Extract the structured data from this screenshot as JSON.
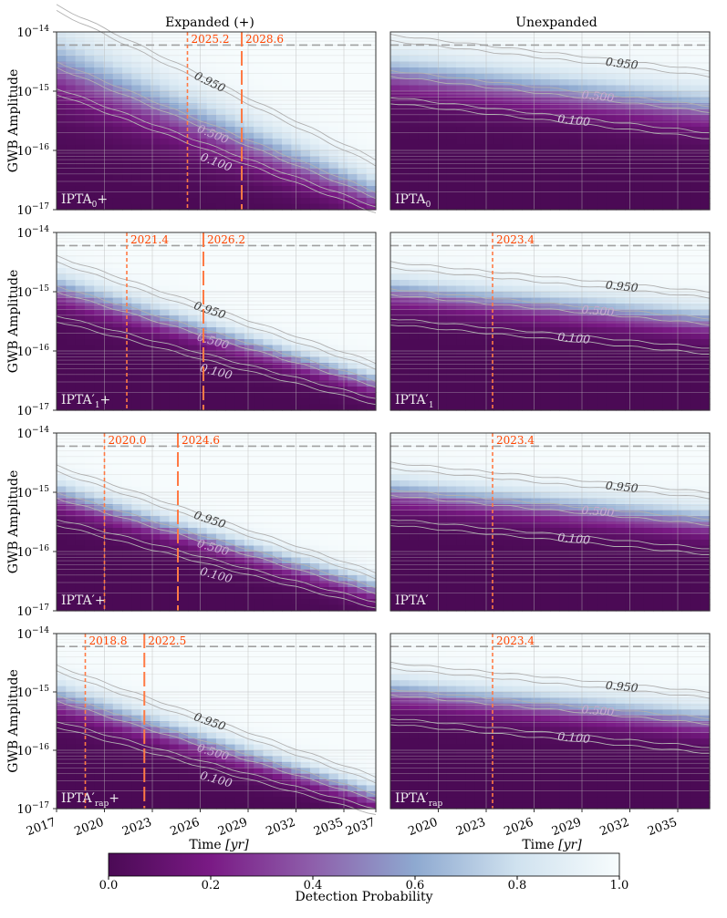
{
  "figure": {
    "column_titles": [
      "Expanded (+)",
      "Unexpanded"
    ],
    "ylabel": "GWB Amplitude",
    "xlabel_main": "Time ",
    "xlabel_unit": "[yr]",
    "colorbar": {
      "label": "Detection Probability",
      "ticks": [
        "0.0",
        "0.2",
        "0.4",
        "0.6",
        "0.8",
        "1.0"
      ]
    }
  },
  "chart_data": [
    {
      "type": "heatmap",
      "label_main": "IPTA",
      "label_sub": "0",
      "label_prime": "",
      "label_plus": "+",
      "expanded": true,
      "x_ticks": [
        2017,
        2020,
        2023,
        2026,
        2029,
        2032,
        2035
      ],
      "xlim": [
        2017,
        2037
      ],
      "ylim_exp": [
        -17,
        -14
      ],
      "y_ticks_exp": [
        -17,
        -16,
        -15,
        -14
      ],
      "y_reference": 6e-16,
      "contours": [
        {
          "level": "0.950",
          "start": -13.6,
          "rate": -0.13
        },
        {
          "level": "0.500",
          "start": -14.55,
          "rate": -0.11
        },
        {
          "level": "0.100",
          "start": -15.0,
          "rate": -0.1
        }
      ],
      "thresholds": [
        {
          "year": 2025.2,
          "label": "2025.2",
          "dash": "short"
        },
        {
          "year": 2028.6,
          "label": "2028.6",
          "dash": "long"
        }
      ]
    },
    {
      "type": "heatmap",
      "label_main": "IPTA",
      "label_sub": "0",
      "label_prime": "",
      "label_plus": "",
      "expanded": false,
      "x_ticks": [
        2020,
        2023,
        2026,
        2029,
        2032,
        2035
      ],
      "xlim": [
        2017,
        2037
      ],
      "ylim_exp": [
        -17,
        -14
      ],
      "y_reference": 6e-16,
      "contours": [
        {
          "level": "0.950",
          "start": -14.1,
          "rate": -0.03
        },
        {
          "level": "0.500",
          "start": -14.7,
          "rate": -0.03
        },
        {
          "level": "0.100",
          "start": -15.15,
          "rate": -0.03
        }
      ],
      "thresholds": []
    },
    {
      "type": "heatmap",
      "label_main": "IPTA",
      "label_sub": "1",
      "label_prime": "′",
      "label_plus": "+",
      "expanded": true,
      "x_ticks": [
        2017,
        2020,
        2023,
        2026,
        2029,
        2032,
        2035
      ],
      "xlim": [
        2017,
        2037
      ],
      "ylim_exp": [
        -17,
        -14
      ],
      "y_ticks_exp": [
        -17,
        -16,
        -15,
        -14
      ],
      "y_reference": 6e-16,
      "contours": [
        {
          "level": "0.950",
          "start": -14.45,
          "rate": -0.09
        },
        {
          "level": "0.500",
          "start": -14.95,
          "rate": -0.08
        },
        {
          "level": "0.100",
          "start": -15.45,
          "rate": -0.07
        }
      ],
      "thresholds": [
        {
          "year": 2021.4,
          "label": "2021.4",
          "dash": "short"
        },
        {
          "year": 2026.2,
          "label": "2026.2",
          "dash": "long"
        }
      ]
    },
    {
      "type": "heatmap",
      "label_main": "IPTA",
      "label_sub": "1",
      "label_prime": "′",
      "label_plus": "",
      "expanded": false,
      "x_ticks": [
        2020,
        2023,
        2026,
        2029,
        2032,
        2035
      ],
      "xlim": [
        2017,
        2037
      ],
      "ylim_exp": [
        -17,
        -14
      ],
      "y_reference": 6e-16,
      "contours": [
        {
          "level": "0.950",
          "start": -14.55,
          "rate": -0.025
        },
        {
          "level": "0.500",
          "start": -15.0,
          "rate": -0.025
        },
        {
          "level": "0.100",
          "start": -15.5,
          "rate": -0.025
        }
      ],
      "thresholds": [
        {
          "year": 2023.4,
          "label": "2023.4",
          "dash": "short"
        }
      ]
    },
    {
      "type": "heatmap",
      "label_main": "IPTA",
      "label_sub": "",
      "label_prime": "′",
      "label_plus": "+",
      "expanded": true,
      "x_ticks": [
        2017,
        2020,
        2023,
        2026,
        2029,
        2032,
        2035
      ],
      "xlim": [
        2017,
        2037
      ],
      "ylim_exp": [
        -17,
        -14
      ],
      "y_ticks_exp": [
        -17,
        -16,
        -15,
        -14
      ],
      "y_reference": 6e-16,
      "contours": [
        {
          "level": "0.950",
          "start": -14.6,
          "rate": -0.09
        },
        {
          "level": "0.500",
          "start": -15.05,
          "rate": -0.08
        },
        {
          "level": "0.100",
          "start": -15.5,
          "rate": -0.07
        }
      ],
      "thresholds": [
        {
          "year": 2020.0,
          "label": "2020.0",
          "dash": "short"
        },
        {
          "year": 2024.6,
          "label": "2024.6",
          "dash": "long"
        }
      ]
    },
    {
      "type": "heatmap",
      "label_main": "IPTA",
      "label_sub": "",
      "label_prime": "′",
      "label_plus": "",
      "expanded": false,
      "x_ticks": [
        2020,
        2023,
        2026,
        2029,
        2032,
        2035
      ],
      "xlim": [
        2017,
        2037
      ],
      "ylim_exp": [
        -17,
        -14
      ],
      "y_reference": 6e-16,
      "contours": [
        {
          "level": "0.950",
          "start": -14.55,
          "rate": -0.025
        },
        {
          "level": "0.500",
          "start": -15.0,
          "rate": -0.025
        },
        {
          "level": "0.100",
          "start": -15.5,
          "rate": -0.025
        }
      ],
      "thresholds": [
        {
          "year": 2023.4,
          "label": "2023.4",
          "dash": "short"
        }
      ]
    },
    {
      "type": "heatmap",
      "label_main": "IPTA",
      "label_sub": "rap",
      "label_prime": "′",
      "label_plus": "+",
      "expanded": true,
      "x_ticks": [
        2017,
        2020,
        2023,
        2026,
        2029,
        2032,
        2035
      ],
      "xlim": [
        2017,
        2037
      ],
      "ylim_exp": [
        -17,
        -14
      ],
      "y_ticks_exp": [
        -17,
        -16,
        -15,
        -14
      ],
      "y_reference": 6e-16,
      "contours": [
        {
          "level": "0.950",
          "start": -14.6,
          "rate": -0.095
        },
        {
          "level": "0.500",
          "start": -15.1,
          "rate": -0.085
        },
        {
          "level": "0.100",
          "start": -15.55,
          "rate": -0.075
        }
      ],
      "thresholds": [
        {
          "year": 2018.8,
          "label": "2018.8",
          "dash": "short"
        },
        {
          "year": 2022.5,
          "label": "2022.5",
          "dash": "long"
        }
      ]
    },
    {
      "type": "heatmap",
      "label_main": "IPTA",
      "label_sub": "rap",
      "label_prime": "′",
      "label_plus": "",
      "expanded": false,
      "x_ticks": [
        2020,
        2023,
        2026,
        2029,
        2032,
        2035
      ],
      "xlim": [
        2017,
        2037
      ],
      "ylim_exp": [
        -17,
        -14
      ],
      "y_reference": 6e-16,
      "contours": [
        {
          "level": "0.950",
          "start": -14.55,
          "rate": -0.025
        },
        {
          "level": "0.500",
          "start": -15.0,
          "rate": -0.025
        },
        {
          "level": "0.100",
          "start": -15.5,
          "rate": -0.025
        }
      ],
      "thresholds": [
        {
          "year": 2023.4,
          "label": "2023.4",
          "dash": "short"
        }
      ]
    }
  ]
}
